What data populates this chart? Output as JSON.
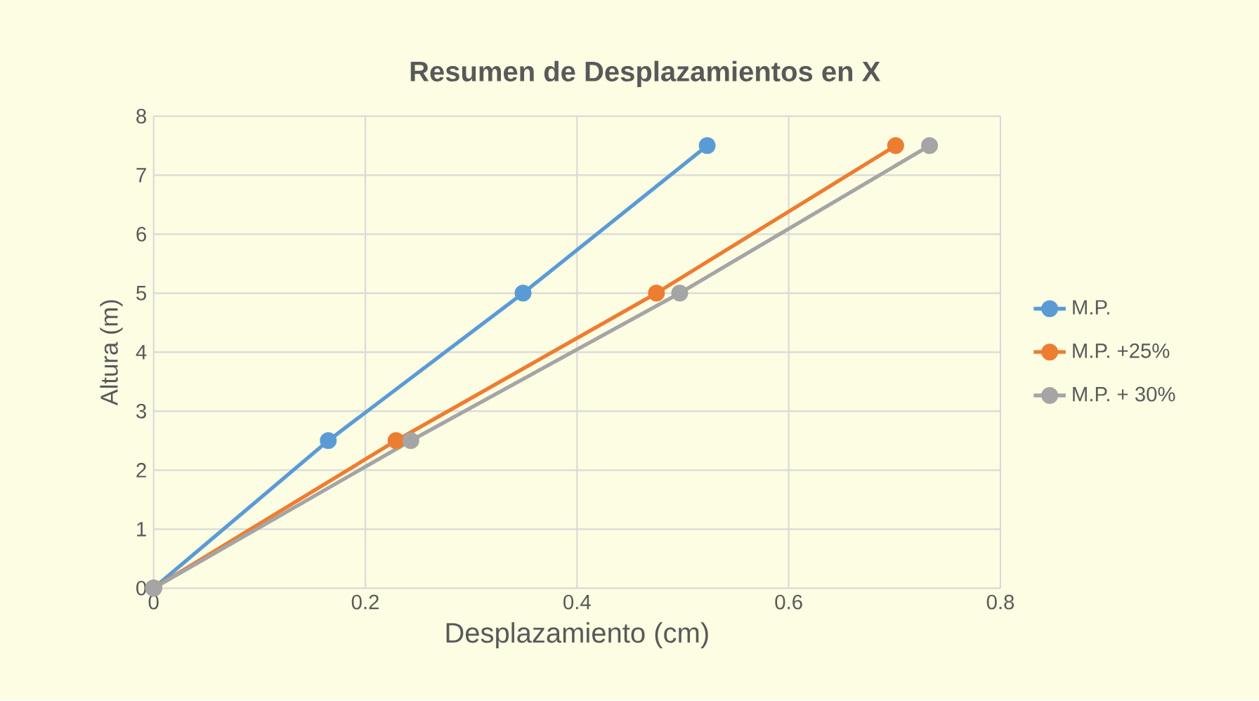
{
  "chart_data": {
    "type": "line",
    "title": "Resumen de Desplazamientos en X",
    "xlabel": "Desplazamiento  (cm)",
    "ylabel": "Altura (m)",
    "xlim": [
      0,
      0.8
    ],
    "ylim": [
      0,
      8
    ],
    "xticks": [
      0,
      0.2,
      0.4,
      0.6,
      0.8
    ],
    "yticks": [
      0,
      1,
      2,
      3,
      4,
      5,
      6,
      7,
      8
    ],
    "grid": true,
    "legend": "right",
    "marker": "circle",
    "line_style": "solid",
    "series": [
      {
        "name": "M.P.",
        "color": "#5b9bd5",
        "x": [
          0,
          0.165,
          0.349,
          0.523
        ],
        "values": [
          0,
          2.5,
          5,
          7.5
        ]
      },
      {
        "name": "M.P. +25%",
        "color": "#ed7d31",
        "x": [
          0,
          0.229,
          0.475,
          0.701
        ],
        "values": [
          0,
          2.5,
          5,
          7.5
        ]
      },
      {
        "name": "M.P. + 30%",
        "color": "#a5a5a5",
        "x": [
          0,
          0.243,
          0.497,
          0.733
        ],
        "values": [
          0,
          2.5,
          5,
          7.5
        ]
      }
    ]
  }
}
